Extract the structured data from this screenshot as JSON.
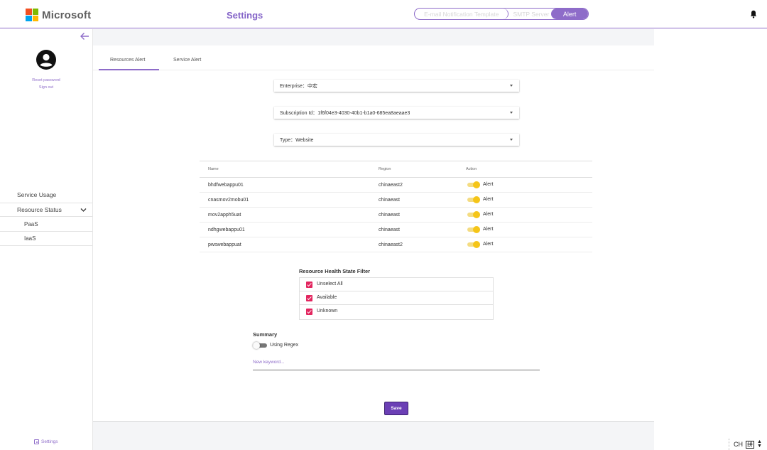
{
  "header": {
    "brand": "Microsoft",
    "title": "Settings",
    "segments": [
      "E-mail Notification Template",
      "SMTP Server",
      "Alert"
    ],
    "active_segment": "Alert",
    "bell_icon": "bell-icon",
    "brand_colors": [
      "#f25022",
      "#7fba00",
      "#00a4ef",
      "#ffb900"
    ],
    "accent_color": "#8e6cc9"
  },
  "sidebar": {
    "back_icon": "arrow-left-icon",
    "avatar_icon": "account-circle-icon",
    "reset_password": "Reset password",
    "sign_out": "Sign out",
    "items": [
      {
        "label": "Service Usage"
      },
      {
        "label": "Resource Status",
        "expanded": true,
        "icon": "chevron-down-icon"
      },
      {
        "label": "PaaS"
      },
      {
        "label": "IaaS"
      }
    ],
    "settings_label": "Settings",
    "settings_icon": "settings-box-icon"
  },
  "tabs": [
    {
      "label": "Resources Alert",
      "active": true
    },
    {
      "label": "Service Alert",
      "active": false
    }
  ],
  "filters": {
    "enterprise": "Enterprise：中宏",
    "subscription": "Subscription Id：1f6f04e3-4030-40b1-b1a0-685ea8aeaae3",
    "type": "Type：Website"
  },
  "table": {
    "columns": [
      "Name",
      "Region",
      "Action"
    ],
    "rows": [
      {
        "name": "bhdfwebappu01",
        "region": "chinaeast2",
        "action": "Alert",
        "enabled": true
      },
      {
        "name": "cnasmov2mobu01",
        "region": "chinaeast",
        "action": "Alert",
        "enabled": true
      },
      {
        "name": "mov2apph5uat",
        "region": "chinaeast",
        "action": "Alert",
        "enabled": true
      },
      {
        "name": "ndhgwebappu01",
        "region": "chinaeast",
        "action": "Alert",
        "enabled": true
      },
      {
        "name": "pwswebappuat",
        "region": "chinaeast2",
        "action": "Alert",
        "enabled": true
      }
    ],
    "toggle_color": "#f5c518"
  },
  "health_filter": {
    "title": "Resource Health State Filter",
    "options": [
      {
        "label": "Unselect All",
        "checked": true
      },
      {
        "label": "Available",
        "checked": true
      },
      {
        "label": "Unknown",
        "checked": true
      }
    ],
    "checkbox_color": "#e2265f"
  },
  "summary": {
    "title": "Summary",
    "regex_label": "Using Regex",
    "regex_enabled": false,
    "keyword_placeholder": "New keyword..."
  },
  "save_label": "Save",
  "tray": {
    "language": "CH",
    "ime_glyph": "拼"
  }
}
